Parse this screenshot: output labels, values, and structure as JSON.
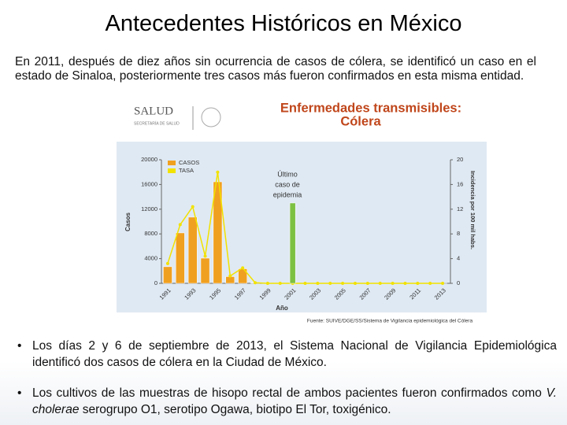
{
  "title": "Antecedentes Históricos en México",
  "paragraph": "En 2011, después de diez años sin ocurrencia de casos de cólera, se identificó un caso en el estado de Sinaloa, posteriormente tres casos más fueron confirmados en esta misma entidad.",
  "chart_data": {
    "type": "bar",
    "logo": "SALUD",
    "logo_subtitle": "SECRETARÍA DE SALUD",
    "title": [
      "Enfermedades transmisibles:",
      "Cólera"
    ],
    "annotation": [
      "Último",
      "caso de",
      "epidemia"
    ],
    "xlabel": "Año",
    "ylabel": "Casos",
    "y2label": "Incidencia por 100 mil habs.",
    "source": "Fuente: SUIVE/DGE/SS/Sistema de Vigilancia epidemiológica del Cólera",
    "categories": [
      "1991",
      null,
      "1993",
      null,
      "1995",
      null,
      "1997",
      null,
      "1999",
      null,
      "2001",
      null,
      "2003",
      null,
      "2005",
      null,
      "2007",
      null,
      "2009",
      null,
      "2011",
      null,
      "2013"
    ],
    "series": [
      {
        "name": "CASOS",
        "color": "#f0a020",
        "values": [
          2690,
          8162,
          10712,
          4075,
          16430,
          1088,
          2356,
          71,
          9,
          5,
          1,
          0,
          0,
          0,
          0,
          0,
          0,
          0,
          0,
          1,
          1,
          0,
          2
        ]
      },
      {
        "name": "TASA",
        "color": "#f2e200",
        "axis": "y2",
        "values": [
          3.2,
          9.5,
          12.4,
          4.4,
          18,
          1.2,
          2.5,
          0.1,
          0,
          0,
          0,
          0,
          0,
          0,
          0,
          0,
          0,
          0,
          0,
          0,
          0,
          0,
          0
        ]
      },
      {
        "color": "#7dc142",
        "values": [
          null,
          null,
          null,
          null,
          null,
          null,
          null,
          null,
          null,
          null,
          13000,
          null,
          null,
          null,
          null,
          null,
          null,
          null,
          null,
          null,
          null,
          null,
          null
        ]
      }
    ],
    "ylim": [
      0,
      20000
    ],
    "yticks": [
      0,
      4000,
      8000,
      12000,
      16000,
      20000
    ],
    "y2lim": [
      0,
      20
    ],
    "y2ticks": [
      0,
      4,
      8,
      12,
      16,
      20
    ],
    "legend": "upper left"
  },
  "bullets": [
    [
      "Los días 2 y 6 de septiembre de 2013, el Sistema Nacional de Vigilancia Epidemiológica identificó dos casos de cólera en la Ciudad de México."
    ],
    [
      "Los cultivos de las muestras de hisopo rectal de ambos pacientes fueron confirmados como ",
      "V. cholerae",
      " serogrupo O1, serotipo Ogawa, biotipo El Tor, toxigénico."
    ]
  ]
}
